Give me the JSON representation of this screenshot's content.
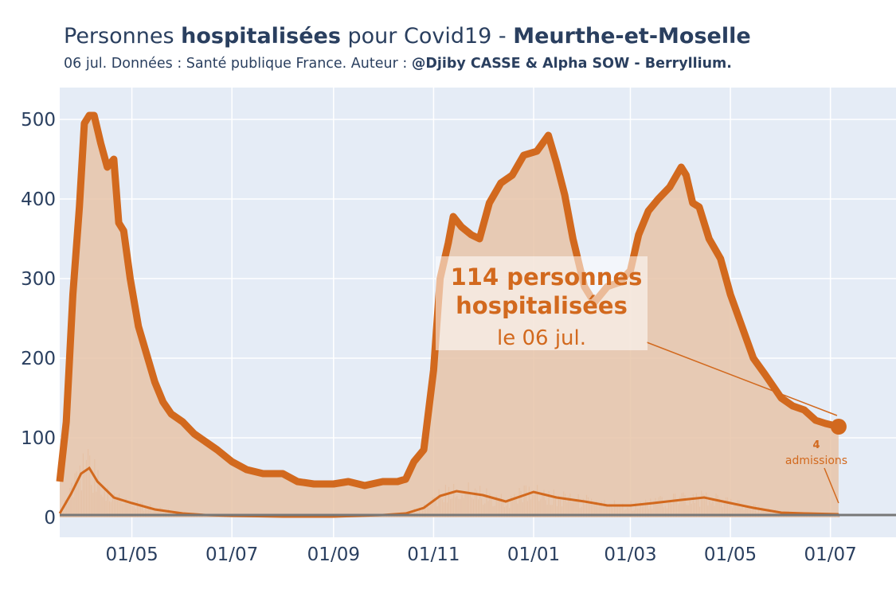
{
  "header": {
    "title_prefix": "Personnes ",
    "title_bold1": "hospitalisées",
    "title_mid": " pour Covid19 - ",
    "title_bold2": "Meurthe-et-Moselle",
    "subtitle_prefix": "06 jul. Données : Santé publique France. Auteur : ",
    "subtitle_bold": "@Djiby CASSE & Alpha SOW - Berryllium."
  },
  "annotations": {
    "main_line1": "114 personnes",
    "main_line2": "hospitalisées",
    "main_line3": "le 06 jul.",
    "adm_value": "4",
    "adm_label": "admissions"
  },
  "colors": {
    "line": "#d2691e",
    "fill": "#e8c4a8",
    "plot_bg": "#e5ecf6",
    "grid": "#ffffff",
    "text": "#2a3f5f"
  },
  "chart_data": {
    "type": "area",
    "title": "Personnes hospitalisées pour Covid19 - Meurthe-et-Moselle",
    "xlabel": "",
    "ylabel": "",
    "x_ticks": [
      "01/05",
      "01/07",
      "01/09",
      "01/11",
      "01/01",
      "01/03",
      "01/05",
      "01/07"
    ],
    "y_ticks": [
      0,
      100,
      200,
      300,
      400,
      500
    ],
    "ylim": [
      -25,
      540
    ],
    "x_range": [
      "2020-03-18",
      "2021-08-10"
    ],
    "grid": true,
    "series": [
      {
        "kind": "hospitalisations",
        "x": [
          "2020-03-18",
          "2020-03-22",
          "2020-03-26",
          "2020-03-30",
          "2020-04-02",
          "2020-04-05",
          "2020-04-08",
          "2020-04-12",
          "2020-04-16",
          "2020-04-20",
          "2020-04-23",
          "2020-04-26",
          "2020-04-30",
          "2020-05-05",
          "2020-05-10",
          "2020-05-15",
          "2020-05-20",
          "2020-05-25",
          "2020-06-01",
          "2020-06-08",
          "2020-06-15",
          "2020-06-22",
          "2020-07-01",
          "2020-07-10",
          "2020-07-20",
          "2020-08-01",
          "2020-08-10",
          "2020-08-20",
          "2020-09-01",
          "2020-09-10",
          "2020-09-20",
          "2020-10-01",
          "2020-10-10",
          "2020-10-15",
          "2020-10-20",
          "2020-10-26",
          "2020-11-01",
          "2020-11-05",
          "2020-11-10",
          "2020-11-13",
          "2020-11-18",
          "2020-11-24",
          "2020-11-29",
          "2020-12-05",
          "2020-12-12",
          "2020-12-19",
          "2020-12-26",
          "2021-01-03",
          "2021-01-10",
          "2021-01-15",
          "2021-01-20",
          "2021-01-25",
          "2021-02-01",
          "2021-02-07",
          "2021-02-15",
          "2021-02-22",
          "2021-03-01",
          "2021-03-06",
          "2021-03-12",
          "2021-03-18",
          "2021-03-25",
          "2021-04-01",
          "2021-04-04",
          "2021-04-08",
          "2021-04-12",
          "2021-04-18",
          "2021-04-25",
          "2021-05-01",
          "2021-05-08",
          "2021-05-15",
          "2021-05-22",
          "2021-06-01",
          "2021-06-08",
          "2021-06-15",
          "2021-06-22",
          "2021-06-28",
          "2021-07-06"
        ],
        "values": [
          45,
          120,
          280,
          390,
          495,
          505,
          505,
          470,
          440,
          450,
          370,
          360,
          300,
          240,
          205,
          170,
          145,
          130,
          120,
          105,
          95,
          85,
          70,
          60,
          55,
          55,
          45,
          42,
          42,
          45,
          40,
          45,
          45,
          48,
          70,
          85,
          185,
          300,
          345,
          378,
          365,
          355,
          350,
          395,
          420,
          430,
          455,
          460,
          480,
          445,
          405,
          350,
          290,
          270,
          290,
          295,
          310,
          355,
          385,
          400,
          415,
          440,
          430,
          395,
          390,
          350,
          325,
          280,
          240,
          200,
          180,
          150,
          140,
          135,
          122,
          118,
          114
        ]
      },
      {
        "kind": "admissions",
        "x": [
          "2020-03-18",
          "2020-03-25",
          "2020-03-31",
          "2020-04-05",
          "2020-04-10",
          "2020-04-20",
          "2020-05-01",
          "2020-05-15",
          "2020-06-01",
          "2020-06-15",
          "2020-07-01",
          "2020-08-01",
          "2020-09-01",
          "2020-10-01",
          "2020-10-15",
          "2020-10-26",
          "2020-11-05",
          "2020-11-15",
          "2020-12-01",
          "2020-12-15",
          "2021-01-01",
          "2021-01-15",
          "2021-02-01",
          "2021-02-15",
          "2021-03-01",
          "2021-03-15",
          "2021-04-01",
          "2021-04-15",
          "2021-05-01",
          "2021-05-15",
          "2021-06-01",
          "2021-06-15",
          "2021-07-06"
        ],
        "values": [
          5,
          30,
          55,
          62,
          45,
          25,
          18,
          10,
          5,
          3,
          2,
          1,
          1,
          3,
          5,
          12,
          27,
          33,
          28,
          20,
          32,
          25,
          20,
          15,
          15,
          18,
          22,
          25,
          18,
          12,
          6,
          5,
          4
        ]
      }
    ]
  }
}
